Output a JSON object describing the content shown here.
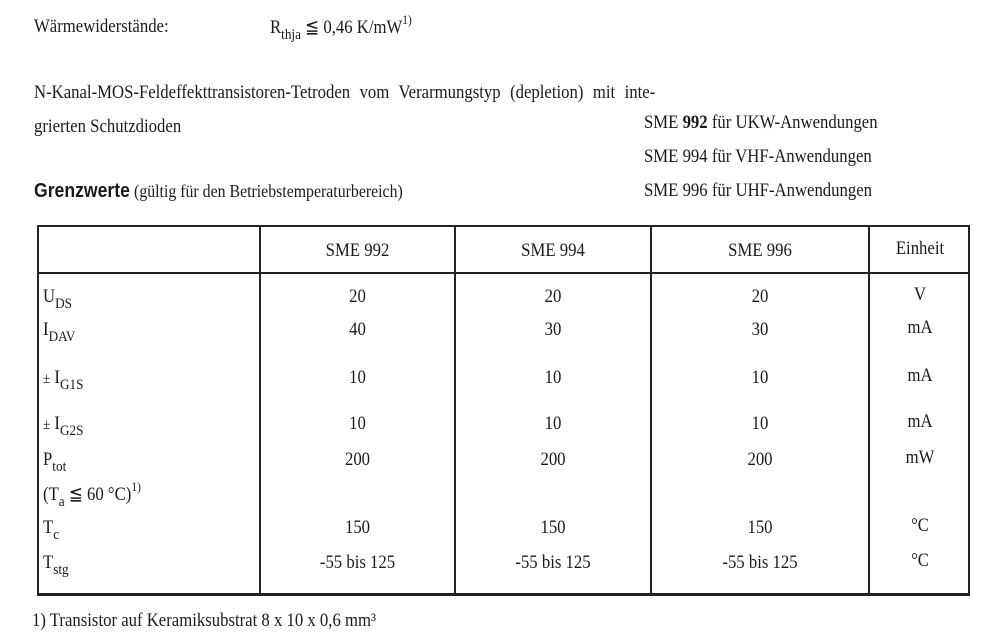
{
  "thermal": {
    "label": "Wärmewiderstände:",
    "symbol": "R",
    "subscript": "thja",
    "relation": "≦",
    "value": "0,46 K/mW",
    "footnote_ref": "1)"
  },
  "description": {
    "line1": "N-Kanal-MOS-Feldeffekttransistoren-Tetroden vom Verarmungstyp (depletion) mit inte-",
    "line2": "grierten Schutzdioden"
  },
  "variants": [
    {
      "type": "SME",
      "number": "992",
      "text": "für UKW-Anwendungen"
    },
    {
      "type": "SME",
      "number": "994",
      "text": "für VHF-Anwendungen"
    },
    {
      "type": "SME",
      "number": "996",
      "text": "für UHF-Anwendungen"
    }
  ],
  "section": {
    "title": "Grenzwerte",
    "subtitle": "(gültig für den Betriebstemperaturbereich)"
  },
  "table": {
    "headers": [
      "SME 992",
      "SME 994",
      "SME 996",
      "Einheit"
    ],
    "rows": [
      {
        "prefix": "",
        "symbol": "U",
        "sub": "DS",
        "values": [
          "20",
          "20",
          "20"
        ],
        "unit": "V"
      },
      {
        "prefix": "",
        "symbol": "I",
        "sub": "DAV",
        "values": [
          "40",
          "30",
          "30"
        ],
        "unit": "mA"
      },
      {
        "prefix": "±",
        "symbol": "I",
        "sub": "G1S",
        "values": [
          "10",
          "10",
          "10"
        ],
        "unit": "mA"
      },
      {
        "prefix": "±",
        "symbol": "I",
        "sub": "G2S",
        "values": [
          "10",
          "10",
          "10"
        ],
        "unit": "mA"
      },
      {
        "prefix": "",
        "symbol": "P",
        "sub": "tot",
        "values": [
          "200",
          "200",
          "200"
        ],
        "unit": "mW",
        "condition": {
          "open": "(T",
          "sub": "a",
          "rest": " ≦ 60 °C)",
          "ref": "1)"
        }
      },
      {
        "prefix": "",
        "symbol": "T",
        "sub": "c",
        "values": [
          "150",
          "150",
          "150"
        ],
        "unit": "°C"
      },
      {
        "prefix": "",
        "symbol": "T",
        "sub": "stg",
        "values": [
          "-55 bis 125",
          "-55 bis 125",
          "-55 bis 125"
        ],
        "unit": "°C"
      }
    ]
  },
  "footnote": "1) Transistor auf Keramiksubstrat 8 x 10 x 0,6 mm³"
}
